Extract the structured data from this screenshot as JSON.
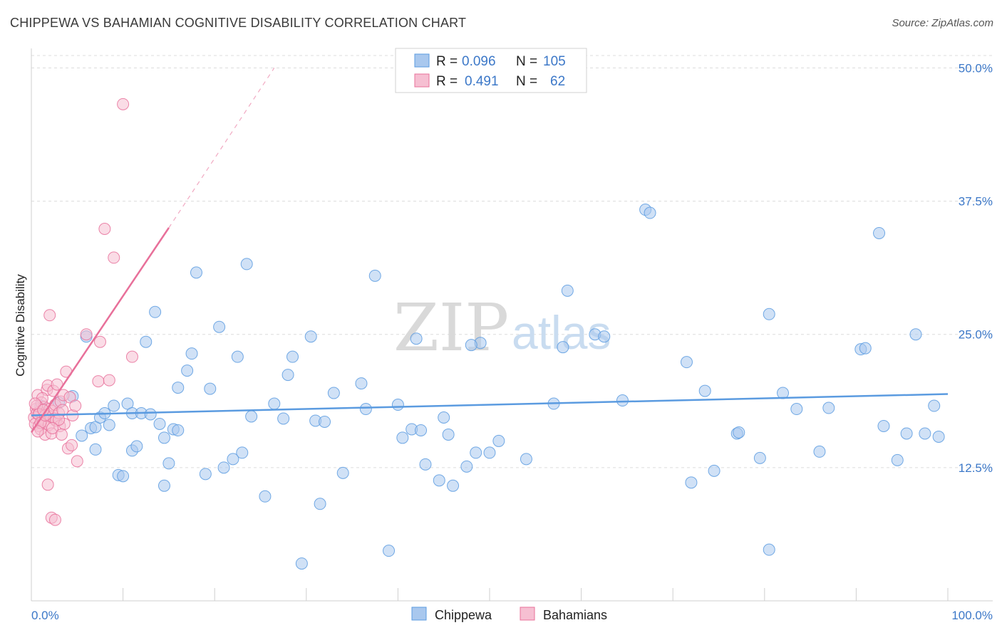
{
  "header": {
    "title": "CHIPPEWA VS BAHAMIAN COGNITIVE DISABILITY CORRELATION CHART",
    "source": "Source: ZipAtlas.com"
  },
  "watermark": {
    "part1": "ZIP",
    "part2": "atlas"
  },
  "legend": {
    "r_label": "R =",
    "n_label": "N =",
    "rows": [
      {
        "series": "Chippewa",
        "r": "0.096",
        "n": "105",
        "color": "#5b9be0"
      },
      {
        "series": "Bahamians",
        "r": "0.491",
        "n": "62",
        "color": "#e8709a"
      }
    ]
  },
  "chart_data": {
    "type": "scatter",
    "title": "CHIPPEWA VS BAHAMIAN COGNITIVE DISABILITY CORRELATION CHART",
    "xlabel": "",
    "ylabel": "Cognitive Disability",
    "xlim": [
      0,
      100
    ],
    "ylim": [
      0,
      52.5
    ],
    "x_tick_labels": [
      "0.0%",
      "100.0%"
    ],
    "y_ticks": [
      12.5,
      25.0,
      37.5,
      50.0
    ],
    "y_tick_labels": [
      "12.5%",
      "25.0%",
      "37.5%",
      "50.0%"
    ],
    "grid": true,
    "series": [
      {
        "name": "Chippewa",
        "color": "#5b9be0",
        "fill": "#a9c8ee",
        "trend": {
          "x": [
            0,
            100
          ],
          "y": [
            17.4,
            19.4
          ],
          "dashed_extension": false
        },
        "points": [
          [
            1.0,
            18.3
          ],
          [
            4.5,
            19.2
          ],
          [
            5.5,
            15.5
          ],
          [
            6.0,
            24.8
          ],
          [
            6.5,
            16.2
          ],
          [
            7.0,
            16.3
          ],
          [
            7.5,
            17.2
          ],
          [
            8.0,
            17.6
          ],
          [
            7.0,
            14.2
          ],
          [
            8.5,
            16.5
          ],
          [
            9.0,
            18.3
          ],
          [
            9.5,
            11.8
          ],
          [
            10.0,
            11.7
          ],
          [
            10.5,
            18.5
          ],
          [
            11.0,
            14.1
          ],
          [
            11.5,
            14.5
          ],
          [
            11.0,
            17.6
          ],
          [
            12.0,
            17.6
          ],
          [
            12.5,
            24.3
          ],
          [
            13.0,
            17.5
          ],
          [
            13.5,
            27.1
          ],
          [
            14.0,
            16.6
          ],
          [
            14.5,
            15.3
          ],
          [
            14.5,
            10.8
          ],
          [
            15.0,
            12.9
          ],
          [
            15.5,
            16.1
          ],
          [
            16.0,
            16.0
          ],
          [
            16.0,
            20.0
          ],
          [
            17.0,
            21.6
          ],
          [
            17.5,
            23.2
          ],
          [
            18.0,
            30.8
          ],
          [
            19.0,
            11.9
          ],
          [
            19.5,
            19.9
          ],
          [
            20.5,
            25.7
          ],
          [
            21.0,
            12.5
          ],
          [
            22.0,
            13.3
          ],
          [
            22.5,
            22.9
          ],
          [
            23.0,
            13.9
          ],
          [
            23.5,
            31.6
          ],
          [
            24.0,
            17.3
          ],
          [
            25.5,
            9.8
          ],
          [
            26.5,
            18.5
          ],
          [
            27.5,
            17.1
          ],
          [
            28.0,
            21.2
          ],
          [
            28.5,
            22.9
          ],
          [
            29.5,
            3.5
          ],
          [
            30.5,
            24.8
          ],
          [
            31.0,
            16.9
          ],
          [
            31.5,
            9.1
          ],
          [
            32.0,
            16.8
          ],
          [
            33.0,
            19.5
          ],
          [
            34.0,
            12.0
          ],
          [
            36.0,
            20.4
          ],
          [
            36.5,
            18.0
          ],
          [
            37.5,
            30.5
          ],
          [
            39.0,
            4.7
          ],
          [
            40.0,
            18.4
          ],
          [
            40.5,
            15.3
          ],
          [
            41.5,
            16.1
          ],
          [
            42.0,
            24.6
          ],
          [
            42.5,
            16.0
          ],
          [
            43.0,
            12.8
          ],
          [
            44.5,
            11.3
          ],
          [
            45.0,
            17.2
          ],
          [
            45.5,
            15.6
          ],
          [
            46.0,
            10.8
          ],
          [
            47.5,
            12.6
          ],
          [
            48.5,
            13.9
          ],
          [
            49.0,
            24.2
          ],
          [
            50.0,
            13.9
          ],
          [
            51.0,
            15.0
          ],
          [
            58.0,
            23.8
          ],
          [
            58.5,
            29.1
          ],
          [
            61.5,
            25.0
          ],
          [
            62.5,
            24.8
          ],
          [
            64.5,
            18.8
          ],
          [
            67.0,
            36.7
          ],
          [
            67.5,
            36.4
          ],
          [
            71.5,
            22.4
          ],
          [
            72.0,
            11.1
          ],
          [
            73.5,
            19.7
          ],
          [
            74.5,
            12.2
          ],
          [
            77.0,
            15.7
          ],
          [
            77.2,
            15.8
          ],
          [
            79.5,
            13.4
          ],
          [
            80.5,
            4.8
          ],
          [
            80.5,
            26.9
          ],
          [
            82.0,
            19.5
          ],
          [
            83.5,
            18.0
          ],
          [
            86.0,
            14.0
          ],
          [
            87.0,
            18.1
          ],
          [
            90.5,
            23.6
          ],
          [
            91.0,
            23.7
          ],
          [
            92.5,
            34.5
          ],
          [
            93.0,
            16.4
          ],
          [
            94.5,
            13.2
          ],
          [
            95.5,
            15.7
          ],
          [
            96.5,
            25.0
          ],
          [
            97.5,
            15.7
          ],
          [
            98.5,
            18.3
          ],
          [
            99.0,
            15.4
          ],
          [
            48.0,
            24.0
          ],
          [
            54.0,
            13.3
          ],
          [
            57.0,
            18.5
          ],
          [
            3.0,
            18.6
          ]
        ]
      },
      {
        "name": "Bahamians",
        "color": "#e8709a",
        "fill": "#f6bfd2",
        "trend": {
          "x": [
            0,
            15
          ],
          "y": [
            15.8,
            35.0
          ],
          "dashed_extension": true,
          "dashed_to": [
            26.5,
            50.0
          ]
        },
        "points": [
          [
            0.3,
            17.2
          ],
          [
            0.4,
            16.6
          ],
          [
            0.5,
            18.0
          ],
          [
            0.6,
            17.6
          ],
          [
            0.7,
            19.3
          ],
          [
            0.8,
            16.4
          ],
          [
            0.9,
            17.7
          ],
          [
            1.0,
            16.1
          ],
          [
            1.1,
            18.6
          ],
          [
            1.2,
            17.0
          ],
          [
            1.3,
            16.8
          ],
          [
            1.4,
            18.2
          ],
          [
            1.5,
            15.6
          ],
          [
            1.6,
            17.5
          ],
          [
            1.7,
            19.8
          ],
          [
            1.8,
            20.2
          ],
          [
            1.9,
            16.5
          ],
          [
            2.0,
            18.0
          ],
          [
            2.1,
            17.3
          ],
          [
            2.2,
            15.7
          ],
          [
            2.3,
            17.8
          ],
          [
            2.4,
            19.7
          ],
          [
            2.5,
            17.1
          ],
          [
            2.6,
            18.4
          ],
          [
            2.7,
            16.9
          ],
          [
            2.8,
            20.3
          ],
          [
            3.0,
            17.6
          ],
          [
            3.1,
            16.4
          ],
          [
            3.2,
            18.7
          ],
          [
            3.4,
            17.9
          ],
          [
            3.5,
            19.3
          ],
          [
            3.6,
            16.6
          ],
          [
            3.8,
            21.5
          ],
          [
            4.0,
            14.3
          ],
          [
            4.2,
            19.1
          ],
          [
            4.5,
            17.4
          ],
          [
            4.8,
            18.3
          ],
          [
            5.0,
            13.1
          ],
          [
            2.0,
            26.8
          ],
          [
            1.8,
            10.9
          ],
          [
            2.2,
            7.8
          ],
          [
            2.6,
            7.6
          ],
          [
            1.2,
            19.0
          ],
          [
            0.6,
            18.3
          ],
          [
            0.8,
            17.5
          ],
          [
            1.0,
            16.7
          ],
          [
            1.5,
            17.4
          ],
          [
            3.0,
            17.0
          ],
          [
            4.4,
            14.6
          ],
          [
            6.0,
            25.0
          ],
          [
            7.3,
            20.6
          ],
          [
            7.5,
            24.3
          ],
          [
            8.0,
            34.9
          ],
          [
            8.5,
            20.7
          ],
          [
            9.0,
            32.2
          ],
          [
            10.0,
            46.6
          ],
          [
            11.0,
            22.9
          ],
          [
            0.4,
            18.5
          ],
          [
            0.7,
            15.9
          ],
          [
            1.3,
            17.9
          ],
          [
            2.3,
            16.2
          ],
          [
            3.3,
            15.6
          ]
        ]
      }
    ]
  }
}
